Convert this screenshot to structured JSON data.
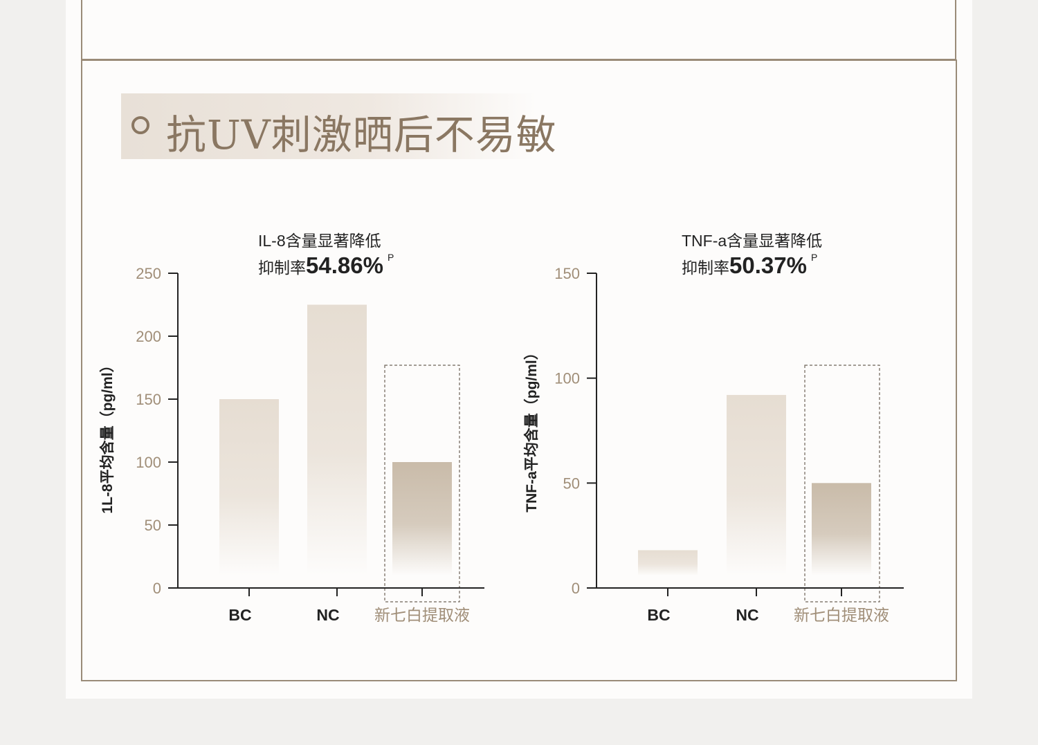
{
  "section": {
    "title": "抗UV刺激晒后不易敏"
  },
  "colors": {
    "frame": "#9a8b78",
    "title": "#8a7762",
    "tick_label": "#a08e78",
    "category_highlight": "#a08e78",
    "bar_light": "#e6ddd2",
    "bar_highlight": "#c9bba9",
    "axis": "#222222"
  },
  "chart_data": [
    {
      "type": "bar",
      "title_line1": "IL-8含量显著降低",
      "title_prefix": "抑制率",
      "title_value": "54.86%",
      "title_sup": "P",
      "ylabel": "1L-8平均含量（pg/ml）",
      "ylim": [
        0,
        250
      ],
      "yticks": [
        0,
        50,
        100,
        150,
        200,
        250
      ],
      "categories": [
        "BC",
        "NC",
        "新七白提取液"
      ],
      "values": [
        150,
        225,
        100
      ],
      "highlight_index": 2
    },
    {
      "type": "bar",
      "title_line1": "TNF-a含量显著降低",
      "title_prefix": "抑制率",
      "title_value": "50.37%",
      "title_sup": "P",
      "ylabel": "TNF-a平均含量（pg/ml）",
      "ylim": [
        0,
        150
      ],
      "yticks": [
        0,
        50,
        100,
        150
      ],
      "categories": [
        "BC",
        "NC",
        "新七白提取液"
      ],
      "values": [
        18,
        92,
        50
      ],
      "highlight_index": 2
    }
  ]
}
